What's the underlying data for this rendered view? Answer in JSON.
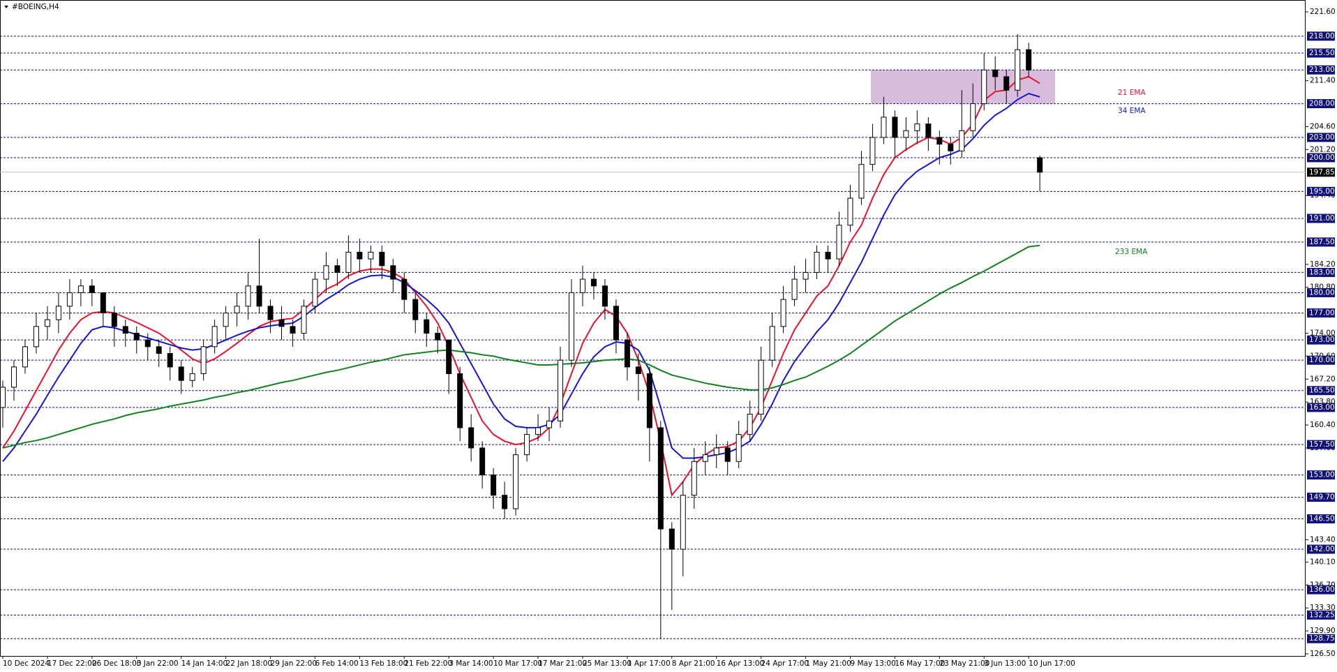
{
  "chart_data": {
    "type": "candlestick",
    "title": "#BOEING,H4",
    "categories": [
      "10 Dec 2024",
      null,
      null,
      null,
      "17 Dec 22:00",
      null,
      null,
      null,
      "26 Dec 18:00",
      null,
      null,
      null,
      "3 Jan 22:00",
      null,
      null,
      null,
      "14 Jan 14:00",
      null,
      null,
      null,
      "22 Jan 18:00",
      null,
      null,
      null,
      "29 Jan 22:00",
      null,
      null,
      null,
      "6 Feb 14:00",
      null,
      null,
      null,
      "13 Feb 18:00",
      null,
      null,
      null,
      "21 Feb 22:00",
      null,
      null,
      null,
      "3 Mar 14:00",
      null,
      null,
      null,
      "10 Mar 17:00",
      null,
      null,
      null,
      "17 Mar 21:00",
      null,
      null,
      null,
      "25 Mar 13:00",
      null,
      null,
      null,
      "1 Apr 17:00",
      null,
      null,
      null,
      "8 Apr 21:00",
      null,
      null,
      null,
      "16 Apr 13:00",
      null,
      null,
      null,
      "24 Apr 17:00",
      null,
      null,
      null,
      "1 May 21:00",
      null,
      null,
      null,
      "9 May 13:00",
      null,
      null,
      null,
      "16 May 17:00",
      null,
      null,
      null,
      "23 May 21:00",
      null,
      null,
      null,
      "3 Jun 13:00",
      null,
      null,
      null,
      "10 Jun 17:00",
      null
    ],
    "open": [
      163,
      166,
      169,
      172,
      175,
      176,
      178,
      180,
      181,
      180,
      177,
      175,
      174,
      173,
      172,
      171,
      169,
      167,
      168,
      172,
      175,
      177,
      178,
      181,
      178,
      176,
      175,
      174,
      178,
      182,
      184,
      183,
      186,
      185,
      186,
      184,
      182,
      179,
      176,
      174,
      173,
      168,
      160,
      157,
      153,
      150,
      148,
      156,
      159,
      160,
      161,
      170,
      180,
      182,
      181,
      178,
      173,
      169,
      168,
      160,
      145,
      142,
      150,
      155,
      156,
      157,
      155,
      159,
      162,
      170,
      175,
      179,
      182,
      183,
      186,
      185,
      190,
      194,
      199,
      203,
      206,
      203,
      204,
      205,
      203,
      202,
      201,
      204,
      208,
      213,
      212,
      210,
      216,
      200
    ],
    "high": [
      167,
      170,
      173,
      177,
      178,
      180,
      182,
      182,
      182,
      180,
      178,
      176,
      175,
      174,
      173,
      172,
      170,
      169,
      173,
      176,
      178,
      180,
      183,
      188,
      179,
      178,
      176,
      179,
      183,
      186,
      185,
      188.5,
      188,
      187,
      187,
      185,
      183,
      180,
      177,
      175,
      173,
      169,
      162,
      158,
      154,
      152,
      157,
      160,
      162,
      163,
      172,
      182,
      184,
      183,
      182,
      179,
      174,
      171,
      169,
      161,
      146,
      152,
      157,
      158,
      159,
      158,
      161,
      164,
      172,
      177,
      181,
      184,
      185,
      187,
      187,
      192,
      196,
      201,
      205,
      209,
      207,
      206,
      207,
      206,
      204,
      203,
      210,
      211,
      215.5,
      215,
      213,
      218.3,
      217,
      200.3
    ],
    "low": [
      160,
      164,
      168,
      171,
      173,
      174,
      176,
      178,
      178,
      175,
      172,
      172,
      171,
      170,
      169,
      167,
      165,
      166,
      167,
      171,
      173,
      175,
      176,
      177,
      174,
      173,
      172,
      173,
      177,
      180,
      181,
      182,
      183,
      183,
      182,
      180,
      177,
      174,
      172,
      171,
      165,
      158,
      155,
      151,
      148,
      146.5,
      147,
      155,
      158,
      158,
      160,
      169,
      178,
      179,
      176,
      171,
      167,
      164,
      155,
      128.75,
      133,
      138,
      148,
      153,
      154,
      153,
      154,
      158,
      161,
      169,
      174,
      178,
      180,
      182,
      183,
      184,
      189,
      193,
      198,
      202,
      200,
      201,
      202,
      201,
      199,
      199,
      200,
      203,
      207,
      210,
      208,
      209,
      212,
      195
    ],
    "close": [
      166,
      169,
      172,
      175,
      176,
      178,
      180,
      181,
      180,
      177,
      175,
      174,
      173,
      172,
      171,
      169,
      167,
      168,
      172,
      175,
      177,
      178,
      181,
      178,
      176,
      175,
      174,
      178,
      182,
      184,
      183,
      186,
      185,
      186,
      184,
      182,
      179,
      176,
      174,
      173,
      168,
      160,
      157,
      153,
      150,
      148,
      156,
      159,
      160,
      161,
      170,
      180,
      182,
      181,
      178,
      173,
      169,
      168,
      160,
      145,
      142,
      150,
      155,
      156,
      157,
      155,
      159,
      162,
      170,
      175,
      179,
      182,
      183,
      186,
      185,
      190,
      194,
      199,
      203,
      206,
      203,
      204,
      205,
      203,
      202,
      201,
      204,
      208,
      213,
      212,
      210,
      216,
      213,
      197.85
    ],
    "up_color": "#ffffff",
    "down_color": "#000000",
    "series": [
      {
        "name": "21 EMA",
        "color": "#e8112d",
        "values": [
          157,
          159.5,
          162.5,
          165.5,
          168.5,
          171.5,
          174,
          176,
          177,
          177.2,
          177,
          176.3,
          175.6,
          174.8,
          174,
          172.8,
          171.5,
          170.2,
          169.5,
          170.2,
          171.3,
          172.5,
          173.8,
          175,
          175.7,
          176,
          176.2,
          177.5,
          179,
          180.5,
          181.3,
          182.5,
          183.2,
          183.5,
          183.5,
          183,
          182,
          180,
          178,
          175.5,
          172,
          168,
          164.5,
          161,
          159,
          158,
          157.5,
          157.8,
          158.5,
          160,
          163.5,
          168,
          172.5,
          175.5,
          177.5,
          176.5,
          174,
          170,
          165,
          158,
          150,
          152,
          154.5,
          156,
          157,
          157.2,
          158,
          160,
          163,
          167,
          171,
          174.5,
          177,
          179.5,
          181,
          184,
          187.5,
          190,
          194,
          197.5,
          200,
          201.2,
          202.2,
          203,
          202.7,
          202,
          203,
          205,
          208.5,
          209.8,
          210,
          211.5,
          212,
          211
        ]
      },
      {
        "name": "34 EMA",
        "color": "#1515d0",
        "values": [
          155,
          157,
          159.5,
          162,
          164.8,
          167.5,
          170,
          172.5,
          174.5,
          175,
          174.8,
          174.3,
          173.8,
          173.3,
          172.8,
          172.3,
          171.8,
          171.5,
          171.7,
          172.3,
          173,
          173.7,
          174.3,
          174.8,
          175.1,
          175.3,
          175.5,
          176.5,
          177.8,
          179,
          180,
          181.2,
          182,
          182.5,
          182.6,
          182.3,
          181.5,
          180.3,
          179,
          177.5,
          175.5,
          172.5,
          169.5,
          166.5,
          163.5,
          161.3,
          160.2,
          160,
          160,
          160.5,
          162,
          165,
          168,
          170.5,
          172,
          172.7,
          172.5,
          171.5,
          168.5,
          163,
          157,
          155.5,
          155.5,
          155.7,
          156,
          156.3,
          157,
          158,
          160.5,
          163.5,
          167,
          169.8,
          172,
          174.2,
          176,
          178.5,
          181.5,
          184.5,
          188,
          191.5,
          194.5,
          196.5,
          198,
          199,
          200,
          200.5,
          201.2,
          202.8,
          204.8,
          206.3,
          207.3,
          208.6,
          209.5,
          209
        ]
      },
      {
        "name": "233 EMA",
        "color": "#12801e",
        "values": [
          157,
          157.4,
          157.8,
          158.1,
          158.5,
          159,
          159.5,
          160,
          160.5,
          160.9,
          161.3,
          161.8,
          162.2,
          162.5,
          162.8,
          163.2,
          163.5,
          163.8,
          164.1,
          164.5,
          164.8,
          165.2,
          165.5,
          165.9,
          166.3,
          166.7,
          167,
          167.4,
          167.8,
          168.2,
          168.5,
          168.9,
          169.3,
          169.7,
          170,
          170.4,
          170.8,
          171,
          171.2,
          171.4,
          171.5,
          171.3,
          171.1,
          170.8,
          170.6,
          170.2,
          169.9,
          169.6,
          169.3,
          169.3,
          169.4,
          169.5,
          169.6,
          169.8,
          170,
          170.1,
          170.2,
          170,
          169.3,
          168.5,
          167.8,
          167.4,
          167,
          166.6,
          166.3,
          166,
          165.8,
          165.6,
          165.6,
          165.9,
          166.4,
          167,
          167.5,
          168.3,
          169.1,
          170,
          171,
          172.2,
          173.4,
          174.6,
          175.8,
          176.8,
          177.8,
          178.8,
          179.8,
          180.7,
          181.5,
          182.4,
          183.2,
          184.1,
          185,
          185.9,
          186.8,
          187
        ]
      }
    ],
    "ylim": [
      126.5,
      221.6
    ],
    "yticks": [
      {
        "value": 221.6,
        "label": "221.60"
      },
      {
        "value": 211.4,
        "label": "211.40"
      },
      {
        "value": 204.6,
        "label": "204.60"
      },
      {
        "value": 201.2,
        "label": "201.20"
      },
      {
        "value": 194.4,
        "label": "194.40"
      },
      {
        "value": 184.2,
        "label": "184.20"
      },
      {
        "value": 180.8,
        "label": "180.80"
      },
      {
        "value": 174,
        "label": "174.00"
      },
      {
        "value": 170.6,
        "label": "170.60"
      },
      {
        "value": 167.2,
        "label": "167.20"
      },
      {
        "value": 163.8,
        "label": "163.80"
      },
      {
        "value": 160.4,
        "label": "160.40"
      },
      {
        "value": 157,
        "label": "157.00"
      },
      {
        "value": 143.4,
        "label": "143.40"
      },
      {
        "value": 140.1,
        "label": "140.10"
      },
      {
        "value": 136.7,
        "label": "136.70"
      },
      {
        "value": 133.3,
        "label": "133.30"
      },
      {
        "value": 129.9,
        "label": "129.90"
      },
      {
        "value": 126.5,
        "label": "126.50"
      }
    ],
    "levels": [
      {
        "value": 218,
        "label": "218.00"
      },
      {
        "value": 215.5,
        "label": "215.50"
      },
      {
        "value": 213,
        "label": "213.00"
      },
      {
        "value": 208,
        "label": "208.00"
      },
      {
        "value": 203,
        "label": "203.00"
      },
      {
        "value": 200,
        "label": "200.00"
      },
      {
        "value": 195,
        "label": "195.00"
      },
      {
        "value": 191,
        "label": "191.00"
      },
      {
        "value": 187.5,
        "label": "187.50"
      },
      {
        "value": 183,
        "label": "183.00"
      },
      {
        "value": 180,
        "label": "180.00"
      },
      {
        "value": 177,
        "label": "177.00"
      },
      {
        "value": 173,
        "label": "173.00"
      },
      {
        "value": 170,
        "label": "170.00"
      },
      {
        "value": 165.5,
        "label": "165.50"
      },
      {
        "value": 163,
        "label": "163.00"
      },
      {
        "value": 157.5,
        "label": "157.50"
      },
      {
        "value": 153,
        "label": "153.00"
      },
      {
        "value": 149.7,
        "label": "149.70"
      },
      {
        "value": 146.5,
        "label": "146.50"
      },
      {
        "value": 142,
        "label": "142.00"
      },
      {
        "value": 136,
        "label": "136.00"
      },
      {
        "value": 132.25,
        "label": "132.25"
      },
      {
        "value": 128.75,
        "label": "128.75"
      }
    ],
    "level_color": "#10107a",
    "last_price": {
      "value": 197.85,
      "label": "197.85"
    },
    "zone": {
      "low": 208,
      "high": 213,
      "color": "#d9bcdc"
    }
  }
}
